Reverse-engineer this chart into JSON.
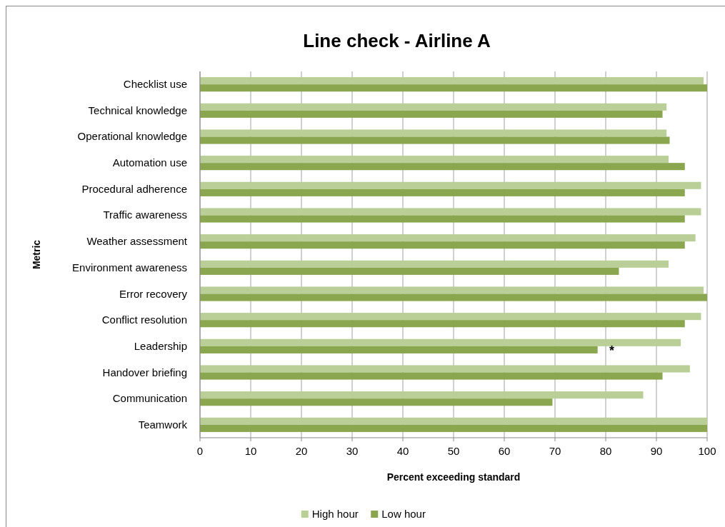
{
  "chart_data": {
    "type": "bar",
    "orientation": "horizontal",
    "title": "Line check - Airline A",
    "xlabel": "Percent exceeding standard",
    "ylabel": "Metric",
    "categories": [
      "Checklist use",
      "Technical knowledge",
      "Operational knowledge",
      "Automation use",
      "Procedural adherence",
      "Traffic awareness",
      "Weather assessment",
      "Environment awareness",
      "Error recovery",
      "Conflict resolution",
      "Leadership",
      "Handover briefing",
      "Communication",
      "Teamwork"
    ],
    "series": [
      {
        "name": "High hour",
        "color": "#b9cf97",
        "values": [
          99.3,
          92.0,
          92.0,
          92.4,
          98.8,
          98.8,
          97.7,
          92.4,
          99.3,
          98.8,
          94.8,
          96.6,
          87.4,
          100
        ]
      },
      {
        "name": "Low hour",
        "color": "#8aa64e",
        "values": [
          100,
          91.2,
          92.6,
          95.6,
          95.6,
          95.6,
          95.6,
          82.6,
          100,
          95.6,
          78.4,
          91.2,
          69.5,
          100
        ]
      }
    ],
    "xlim": [
      0,
      100
    ],
    "xticks": [
      0,
      10,
      20,
      30,
      40,
      50,
      60,
      70,
      80,
      90,
      100
    ],
    "grid": "x",
    "legend": "bottom",
    "annotations": [
      {
        "text": "*",
        "x": 81.2,
        "y": "Leadership"
      }
    ]
  }
}
